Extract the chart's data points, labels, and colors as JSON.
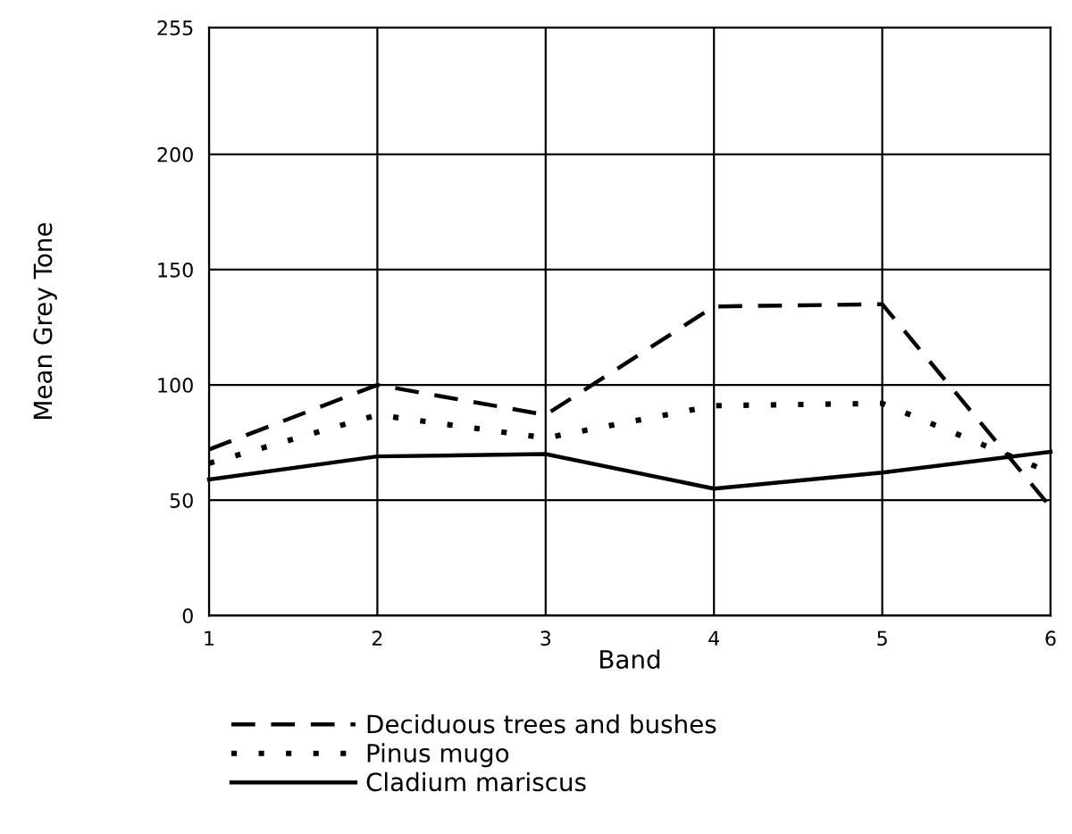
{
  "chart_data": {
    "type": "line",
    "xlabel": "Band",
    "ylabel": "Mean Grey Tone",
    "x": [
      1,
      2,
      3,
      4,
      5,
      6
    ],
    "series": [
      {
        "name": "Deciduous trees and bushes",
        "color": "#000000",
        "line_style": "dashed",
        "values": [
          72,
          100,
          87,
          134,
          135,
          47
        ]
      },
      {
        "name": "Pinus mugo",
        "color": "#000000",
        "line_style": "dotted",
        "values": [
          66,
          87,
          77,
          91,
          92,
          62
        ]
      },
      {
        "name": "Cladium mariscus",
        "color": "#000000",
        "line_style": "solid",
        "values": [
          59,
          69,
          70,
          55,
          62,
          71
        ]
      }
    ],
    "xlim": [
      1,
      6
    ],
    "xticks": [
      1,
      2,
      3,
      4,
      5,
      6
    ],
    "ylim": [
      0,
      255
    ],
    "yticks": [
      0,
      50,
      100,
      150,
      200,
      255
    ],
    "grid": true,
    "legend": "bottom",
    "marker": "none"
  }
}
